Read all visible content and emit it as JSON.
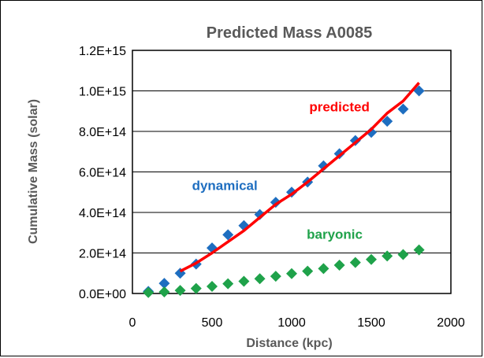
{
  "chart_data": {
    "type": "line",
    "title": "Predicted Mass  A0085",
    "xlabel": "Distance  (kpc)",
    "ylabel": "Cumulative Mass  (solar)",
    "xlim": [
      0,
      2000
    ],
    "ylim": [
      0,
      1200000000000000.0
    ],
    "grid": "horizontal",
    "x_ticks": [
      0,
      500,
      1000,
      1500,
      2000
    ],
    "x_tick_labels": [
      "0",
      "500",
      "1000",
      "1500",
      "2000"
    ],
    "y_ticks": [
      0,
      200000000000000.0,
      400000000000000.0,
      600000000000000.0,
      800000000000000.0,
      1000000000000000.0,
      1200000000000000.0
    ],
    "y_tick_labels": [
      "0.0E+00",
      "2.0E+14",
      "4.0E+14",
      "6.0E+14",
      "8.0E+14",
      "1.0E+15",
      "1.2E+15"
    ],
    "series": [
      {
        "name": "predicted",
        "kind": "line",
        "color": "#ff0000",
        "x": [
          300,
          400,
          500,
          600,
          700,
          800,
          900,
          1000,
          1100,
          1200,
          1300,
          1400,
          1500,
          1600,
          1700,
          1800
        ],
        "y": [
          110000000000000.0,
          150000000000000.0,
          200000000000000.0,
          255000000000000.0,
          310000000000000.0,
          375000000000000.0,
          440000000000000.0,
          490000000000000.0,
          550000000000000.0,
          615000000000000.0,
          680000000000000.0,
          745000000000000.0,
          810000000000000.0,
          890000000000000.0,
          950000000000000.0,
          1040000000000000.0
        ]
      },
      {
        "name": "dynamical",
        "kind": "markers",
        "marker": "diamond",
        "color": "#1e6ec0",
        "x": [
          100,
          200,
          300,
          400,
          500,
          600,
          700,
          800,
          900,
          1000,
          1100,
          1200,
          1300,
          1400,
          1500,
          1600,
          1700,
          1800
        ],
        "y": [
          10000000000000.0,
          50000000000000.0,
          100000000000000.0,
          145000000000000.0,
          225000000000000.0,
          290000000000000.0,
          335000000000000.0,
          390000000000000.0,
          450000000000000.0,
          500000000000000.0,
          550000000000000.0,
          630000000000000.0,
          690000000000000.0,
          755000000000000.0,
          795000000000000.0,
          850000000000000.0,
          910000000000000.0,
          1000000000000000.0
        ]
      },
      {
        "name": "baryonic",
        "kind": "markers",
        "marker": "diamond",
        "color": "#1fa24a",
        "x": [
          100,
          200,
          300,
          400,
          500,
          600,
          700,
          800,
          900,
          1000,
          1100,
          1200,
          1300,
          1400,
          1500,
          1600,
          1700,
          1800
        ],
        "y": [
          5000000000000.0,
          8000000000000.0,
          15000000000000.0,
          25000000000000.0,
          35000000000000.0,
          48000000000000.0,
          60000000000000.0,
          73000000000000.0,
          85000000000000.0,
          98000000000000.0,
          110000000000000.0,
          123000000000000.0,
          140000000000000.0,
          153000000000000.0,
          168000000000000.0,
          185000000000000.0,
          192000000000000.0,
          215000000000000.0
        ]
      }
    ],
    "annotations": [
      {
        "text": "predicted",
        "color": "#ff0000",
        "x": 1300,
        "y": 900000000000000.0
      },
      {
        "text": "dynamical",
        "color": "#1e6ec0",
        "x": 580,
        "y": 510000000000000.0
      },
      {
        "text": "baryonic",
        "color": "#1fa24a",
        "x": 1270,
        "y": 270000000000000.0
      }
    ]
  }
}
